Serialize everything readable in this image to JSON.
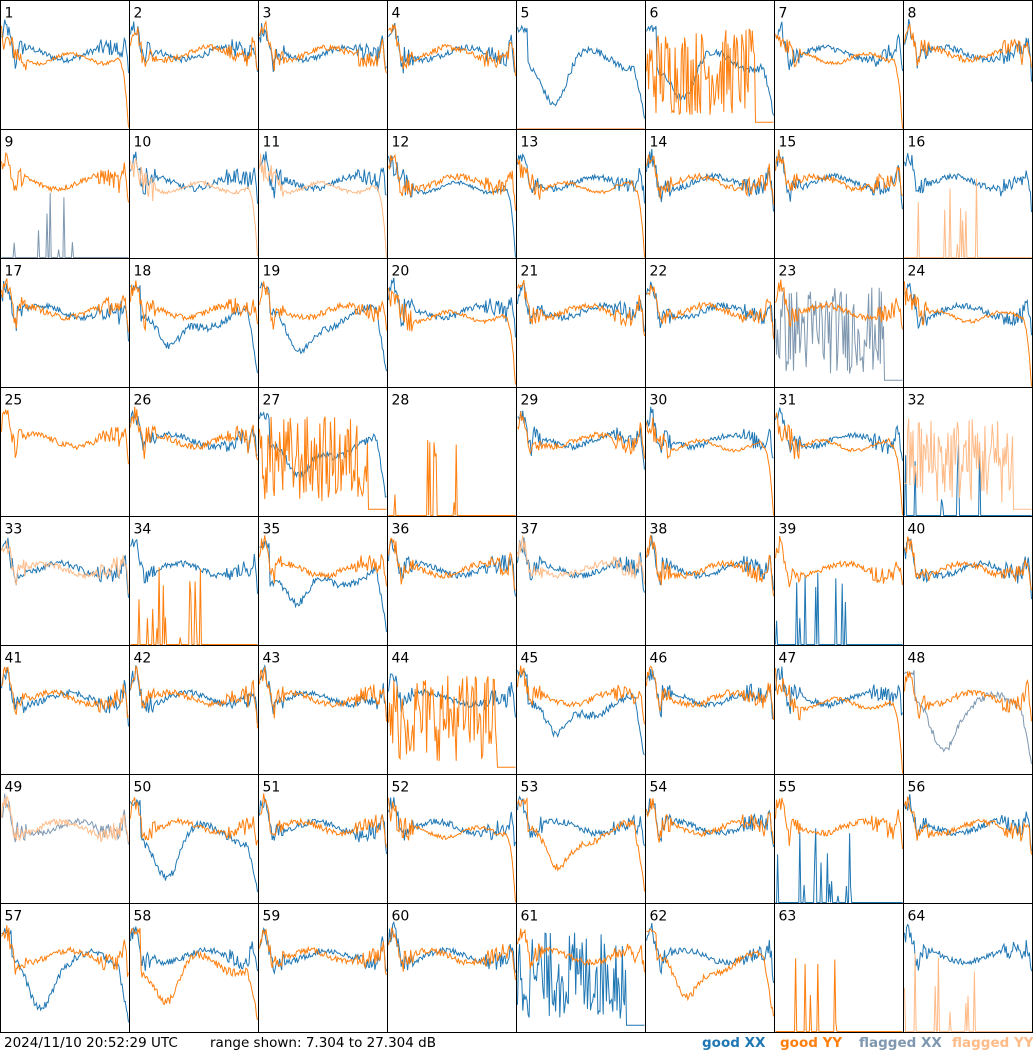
{
  "timestamp": "2024/11/10 20:52:29 UTC",
  "range_text": "range shown: 7.304 to 27.304 dB",
  "legend": [
    {
      "label": "good XX",
      "color": "#1f77b4"
    },
    {
      "label": "good YY",
      "color": "#ff7f0e"
    },
    {
      "label": "flagged XX",
      "color": "#7f98b0"
    },
    {
      "label": "flagged YY",
      "color": "#ffbb88"
    }
  ],
  "chart_data": {
    "type": "line",
    "ylim": [
      7.304,
      27.304
    ],
    "yunit": "dB",
    "grid_rows": 8,
    "grid_cols": 8,
    "panels": [
      {
        "label": "1",
        "xx": "good",
        "yy": "good",
        "xx_shape": "bandpass",
        "yy_shape": "droop"
      },
      {
        "label": "2",
        "xx": "good",
        "yy": "good",
        "xx_shape": "bandpass",
        "yy_shape": "bandpass"
      },
      {
        "label": "3",
        "xx": "good",
        "yy": "good",
        "xx_shape": "bandpass",
        "yy_shape": "bandpass"
      },
      {
        "label": "4",
        "xx": "good",
        "yy": "good",
        "xx_shape": "bandpass",
        "yy_shape": "bandpass"
      },
      {
        "label": "5",
        "xx": "good",
        "yy": "flagged",
        "xx_shape": "dip",
        "yy_shape": "dead"
      },
      {
        "label": "6",
        "xx": "good",
        "yy": "good",
        "xx_shape": "dip",
        "yy_shape": "noisy"
      },
      {
        "label": "7",
        "xx": "good",
        "yy": "good",
        "xx_shape": "bandpass",
        "yy_shape": "droop"
      },
      {
        "label": "8",
        "xx": "good",
        "yy": "good",
        "xx_shape": "bandpass",
        "yy_shape": "bandpass"
      },
      {
        "label": "9",
        "xx": "flagged",
        "yy": "good",
        "xx_shape": "spiky",
        "yy_shape": "bandpass"
      },
      {
        "label": "10",
        "xx": "good",
        "yy": "flagged",
        "xx_shape": "bandpass",
        "yy_shape": "droop"
      },
      {
        "label": "11",
        "xx": "good",
        "yy": "flagged",
        "xx_shape": "bandpass",
        "yy_shape": "droop"
      },
      {
        "label": "12",
        "xx": "good",
        "yy": "good",
        "xx_shape": "droop",
        "yy_shape": "bandpass"
      },
      {
        "label": "13",
        "xx": "good",
        "yy": "good",
        "xx_shape": "bandpass",
        "yy_shape": "droop"
      },
      {
        "label": "14",
        "xx": "good",
        "yy": "good",
        "xx_shape": "bandpass",
        "yy_shape": "bandpass"
      },
      {
        "label": "15",
        "xx": "good",
        "yy": "good",
        "xx_shape": "bandpass",
        "yy_shape": "bandpass"
      },
      {
        "label": "16",
        "xx": "good",
        "yy": "flagged",
        "xx_shape": "bandpass",
        "yy_shape": "spiky"
      },
      {
        "label": "17",
        "xx": "good",
        "yy": "good",
        "xx_shape": "bandpass",
        "yy_shape": "bandpass"
      },
      {
        "label": "18",
        "xx": "good",
        "yy": "good",
        "xx_shape": "dip",
        "yy_shape": "bandpass"
      },
      {
        "label": "19",
        "xx": "good",
        "yy": "good",
        "xx_shape": "dip",
        "yy_shape": "bandpass"
      },
      {
        "label": "20",
        "xx": "good",
        "yy": "good",
        "xx_shape": "bandpass",
        "yy_shape": "droop"
      },
      {
        "label": "21",
        "xx": "good",
        "yy": "good",
        "xx_shape": "bandpass",
        "yy_shape": "bandpass"
      },
      {
        "label": "22",
        "xx": "good",
        "yy": "good",
        "xx_shape": "bandpass",
        "yy_shape": "bandpass"
      },
      {
        "label": "23",
        "xx": "flagged",
        "yy": "good",
        "xx_shape": "noisy",
        "yy_shape": "bandpass"
      },
      {
        "label": "24",
        "xx": "good",
        "yy": "good",
        "xx_shape": "bandpass",
        "yy_shape": "droop"
      },
      {
        "label": "25",
        "xx": "none",
        "yy": "good",
        "xx_shape": "none",
        "yy_shape": "bandpass"
      },
      {
        "label": "26",
        "xx": "good",
        "yy": "good",
        "xx_shape": "bandpass",
        "yy_shape": "bandpass"
      },
      {
        "label": "27",
        "xx": "good",
        "yy": "good",
        "xx_shape": "dip",
        "yy_shape": "noisy"
      },
      {
        "label": "28",
        "xx": "none",
        "yy": "good",
        "xx_shape": "none",
        "yy_shape": "spiky"
      },
      {
        "label": "29",
        "xx": "good",
        "yy": "good",
        "xx_shape": "bandpass",
        "yy_shape": "bandpass"
      },
      {
        "label": "30",
        "xx": "good",
        "yy": "good",
        "xx_shape": "bandpass",
        "yy_shape": "droop"
      },
      {
        "label": "31",
        "xx": "good",
        "yy": "good",
        "xx_shape": "bandpass",
        "yy_shape": "droop"
      },
      {
        "label": "32",
        "xx": "good",
        "yy": "flagged",
        "xx_shape": "spiky",
        "yy_shape": "noisy"
      },
      {
        "label": "33",
        "xx": "good",
        "yy": "flagged",
        "xx_shape": "bandpass",
        "yy_shape": "bandpass"
      },
      {
        "label": "34",
        "xx": "good",
        "yy": "good",
        "xx_shape": "bandpass",
        "yy_shape": "spiky"
      },
      {
        "label": "35",
        "xx": "good",
        "yy": "good",
        "xx_shape": "dip",
        "yy_shape": "bandpass"
      },
      {
        "label": "36",
        "xx": "good",
        "yy": "good",
        "xx_shape": "bandpass",
        "yy_shape": "bandpass"
      },
      {
        "label": "37",
        "xx": "good",
        "yy": "flagged",
        "xx_shape": "bandpass",
        "yy_shape": "bandpass"
      },
      {
        "label": "38",
        "xx": "good",
        "yy": "good",
        "xx_shape": "bandpass",
        "yy_shape": "bandpass"
      },
      {
        "label": "39",
        "xx": "good",
        "yy": "good",
        "xx_shape": "spiky",
        "yy_shape": "bandpass"
      },
      {
        "label": "40",
        "xx": "good",
        "yy": "good",
        "xx_shape": "bandpass",
        "yy_shape": "bandpass"
      },
      {
        "label": "41",
        "xx": "good",
        "yy": "good",
        "xx_shape": "bandpass",
        "yy_shape": "bandpass"
      },
      {
        "label": "42",
        "xx": "good",
        "yy": "good",
        "xx_shape": "bandpass",
        "yy_shape": "bandpass"
      },
      {
        "label": "43",
        "xx": "good",
        "yy": "good",
        "xx_shape": "bandpass",
        "yy_shape": "bandpass"
      },
      {
        "label": "44",
        "xx": "good",
        "yy": "good",
        "xx_shape": "bandpass",
        "yy_shape": "noisy"
      },
      {
        "label": "45",
        "xx": "good",
        "yy": "good",
        "xx_shape": "dip",
        "yy_shape": "bandpass"
      },
      {
        "label": "46",
        "xx": "good",
        "yy": "good",
        "xx_shape": "bandpass",
        "yy_shape": "bandpass"
      },
      {
        "label": "47",
        "xx": "good",
        "yy": "good",
        "xx_shape": "bandpass",
        "yy_shape": "droop"
      },
      {
        "label": "48",
        "xx": "flagged",
        "yy": "good",
        "xx_shape": "dip",
        "yy_shape": "bandpass"
      },
      {
        "label": "49",
        "xx": "flagged",
        "yy": "flagged",
        "xx_shape": "bandpass",
        "yy_shape": "bandpass"
      },
      {
        "label": "50",
        "xx": "good",
        "yy": "good",
        "xx_shape": "dip",
        "yy_shape": "bandpass"
      },
      {
        "label": "51",
        "xx": "good",
        "yy": "good",
        "xx_shape": "bandpass",
        "yy_shape": "bandpass"
      },
      {
        "label": "52",
        "xx": "good",
        "yy": "good",
        "xx_shape": "bandpass",
        "yy_shape": "droop"
      },
      {
        "label": "53",
        "xx": "good",
        "yy": "good",
        "xx_shape": "bandpass",
        "yy_shape": "dip"
      },
      {
        "label": "54",
        "xx": "good",
        "yy": "good",
        "xx_shape": "bandpass",
        "yy_shape": "bandpass"
      },
      {
        "label": "55",
        "xx": "good",
        "yy": "good",
        "xx_shape": "spiky",
        "yy_shape": "bandpass"
      },
      {
        "label": "56",
        "xx": "good",
        "yy": "good",
        "xx_shape": "bandpass",
        "yy_shape": "bandpass"
      },
      {
        "label": "57",
        "xx": "good",
        "yy": "good",
        "xx_shape": "dip",
        "yy_shape": "bandpass"
      },
      {
        "label": "58",
        "xx": "good",
        "yy": "good",
        "xx_shape": "bandpass",
        "yy_shape": "dip"
      },
      {
        "label": "59",
        "xx": "good",
        "yy": "good",
        "xx_shape": "bandpass",
        "yy_shape": "bandpass"
      },
      {
        "label": "60",
        "xx": "good",
        "yy": "good",
        "xx_shape": "bandpass",
        "yy_shape": "bandpass"
      },
      {
        "label": "61",
        "xx": "good",
        "yy": "good",
        "xx_shape": "noisy",
        "yy_shape": "bandpass"
      },
      {
        "label": "62",
        "xx": "good",
        "yy": "good",
        "xx_shape": "bandpass",
        "yy_shape": "dip"
      },
      {
        "label": "63",
        "xx": "none",
        "yy": "good",
        "xx_shape": "none",
        "yy_shape": "spiky"
      },
      {
        "label": "64",
        "xx": "good",
        "yy": "flagged",
        "xx_shape": "bandpass",
        "yy_shape": "spiky"
      }
    ]
  }
}
